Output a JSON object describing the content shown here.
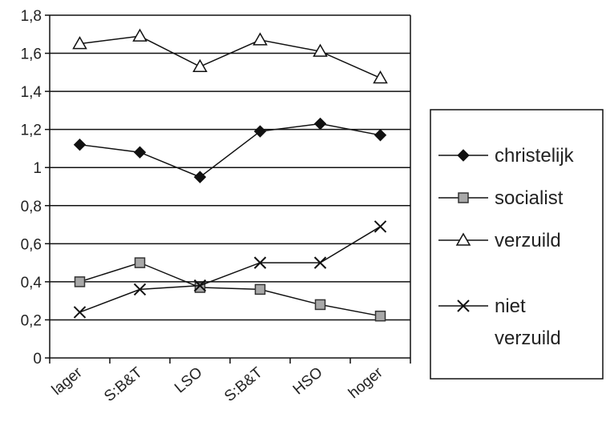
{
  "chart_data": {
    "type": "line",
    "categories": [
      "lager",
      "S:B&T",
      "LSO",
      "S:B&T",
      "HSO",
      "hoger"
    ],
    "ylim": [
      0,
      1.8
    ],
    "yticks": [
      "0",
      "0,2",
      "0,4",
      "0,6",
      "0,8",
      "1",
      "1,2",
      "1,4",
      "1,6",
      "1,8"
    ],
    "grid": true,
    "legend_position": "right",
    "series": [
      {
        "name": "christelijk",
        "marker": "diamond",
        "values": [
          1.12,
          1.08,
          0.95,
          1.19,
          1.23,
          1.17
        ]
      },
      {
        "name": "socialist",
        "marker": "square",
        "values": [
          0.4,
          0.5,
          0.37,
          0.36,
          0.28,
          0.22
        ]
      },
      {
        "name": "verzuild",
        "marker": "triangle",
        "values": [
          1.65,
          1.69,
          1.53,
          1.67,
          1.61,
          1.47
        ]
      },
      {
        "name": "niet verzuild",
        "name_lines": [
          "niet",
          "verzuild"
        ],
        "marker": "x",
        "values": [
          0.24,
          0.36,
          0.38,
          0.5,
          0.5,
          0.69
        ]
      }
    ]
  }
}
